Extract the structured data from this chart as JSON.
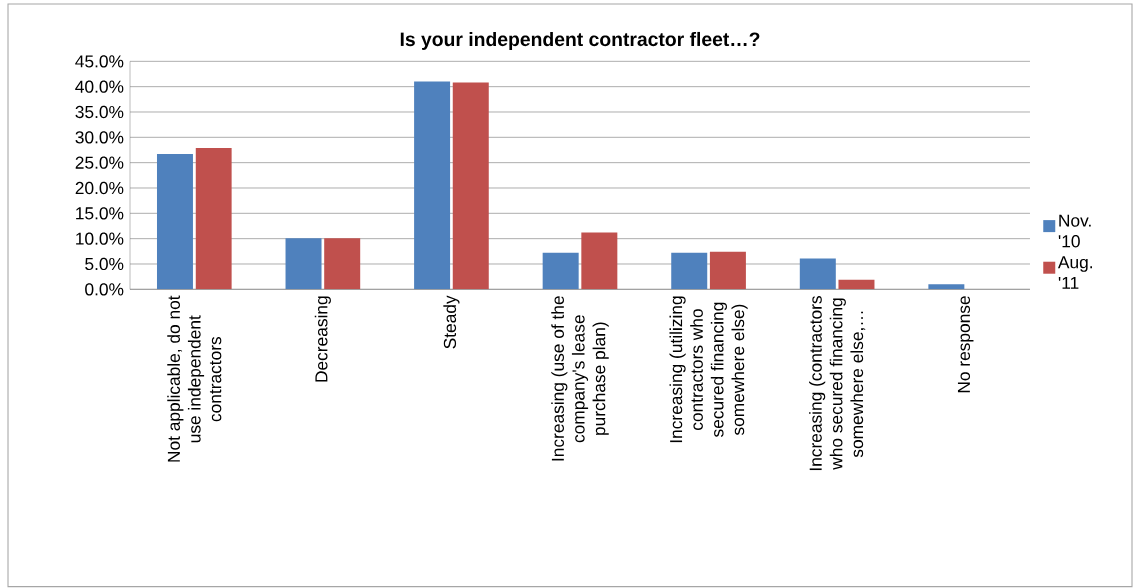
{
  "chart_data": {
    "type": "bar",
    "title": "Is your independent contractor fleet…?",
    "categories": [
      "Not applicable, do not use independent contractors",
      "Decreasing",
      "Steady",
      "Increasing (use of the company's lease purchase plan)",
      "Increasing (utilizing contractors who secured financing somewhere else)",
      "Increasing (contractors who secured financing somewhere else,…",
      "No response"
    ],
    "series": [
      {
        "name": "Nov. '10",
        "color": "#4f81bd",
        "values": [
          26.7,
          10.1,
          41.0,
          7.2,
          7.2,
          6.1,
          1.0
        ]
      },
      {
        "name": "Aug. '11",
        "color": "#c0504d",
        "values": [
          27.9,
          10.1,
          40.8,
          11.2,
          7.4,
          1.9,
          0
        ]
      }
    ],
    "ylim": [
      0,
      45
    ],
    "yticks": [
      {
        "value": 0,
        "label": "0.0%"
      },
      {
        "value": 5,
        "label": "5.0%"
      },
      {
        "value": 10,
        "label": "10.0%"
      },
      {
        "value": 15,
        "label": "15.0%"
      },
      {
        "value": 20,
        "label": "20.0%"
      },
      {
        "value": 25,
        "label": "25.0%"
      },
      {
        "value": 30,
        "label": "30.0%"
      },
      {
        "value": 35,
        "label": "35.0%"
      },
      {
        "value": 40,
        "label": "40.0%"
      },
      {
        "value": 45,
        "label": "45.0%"
      }
    ],
    "grid": "y",
    "legend": "right"
  }
}
